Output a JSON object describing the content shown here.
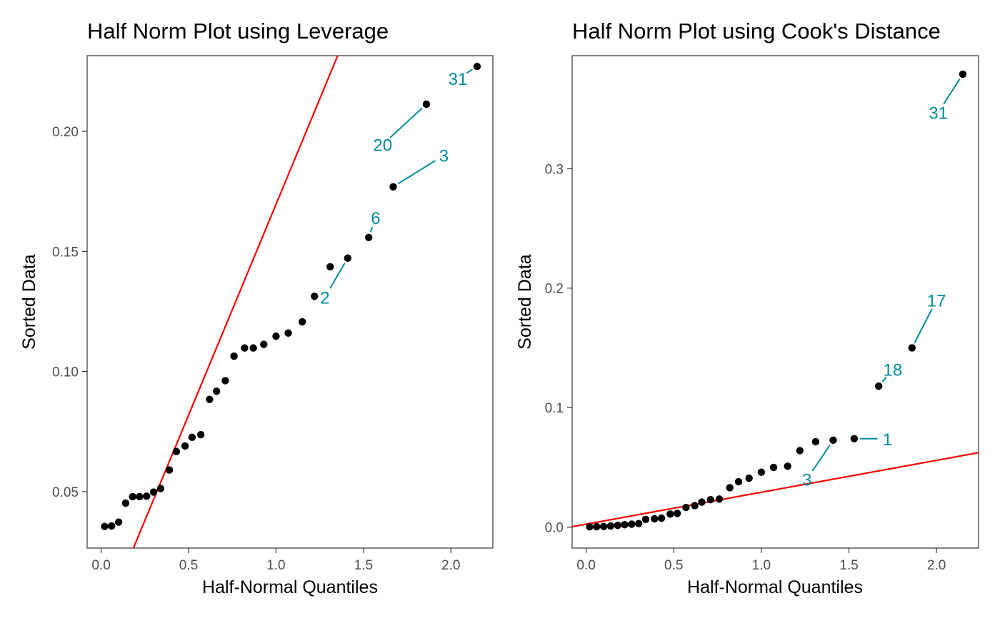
{
  "colors": {
    "point": "#000000",
    "line": "#ff0000",
    "label": "#008b9b",
    "frame": "#333333",
    "tick_text": "#4d4d4d"
  },
  "chart_data": [
    {
      "type": "scatter",
      "title": "Half Norm Plot using Leverage",
      "xlabel": "Half-Normal Quantiles",
      "ylabel": "Sorted Data",
      "xlim": [
        -0.08,
        2.24
      ],
      "ylim": [
        0.0265,
        0.2315
      ],
      "xticks": [
        0.0,
        0.5,
        1.0,
        1.5,
        2.0
      ],
      "xtick_labels": [
        "0.0",
        "0.5",
        "1.0",
        "1.5",
        "2.0"
      ],
      "yticks": [
        0.05,
        0.1,
        0.15,
        0.2
      ],
      "ytick_labels": [
        "0.05",
        "0.10",
        "0.15",
        "0.20"
      ],
      "reference_line": {
        "intercept": -0.0059,
        "slope": 0.1755
      },
      "points": [
        [
          0.02,
          0.0355
        ],
        [
          0.06,
          0.0357
        ],
        [
          0.1,
          0.0373
        ],
        [
          0.14,
          0.0452
        ],
        [
          0.18,
          0.0479
        ],
        [
          0.22,
          0.0479
        ],
        [
          0.26,
          0.0481
        ],
        [
          0.3,
          0.0498
        ],
        [
          0.34,
          0.0513
        ],
        [
          0.39,
          0.059
        ],
        [
          0.43,
          0.0667
        ],
        [
          0.48,
          0.069
        ],
        [
          0.52,
          0.0726
        ],
        [
          0.57,
          0.0737
        ],
        [
          0.62,
          0.0884
        ],
        [
          0.66,
          0.0918
        ],
        [
          0.71,
          0.0962
        ],
        [
          0.76,
          0.1064
        ],
        [
          0.82,
          0.1098
        ],
        [
          0.87,
          0.1098
        ],
        [
          0.93,
          0.1113
        ],
        [
          1.0,
          0.1147
        ],
        [
          1.07,
          0.116
        ],
        [
          1.15,
          0.1207
        ],
        [
          1.22,
          0.1313
        ],
        [
          1.31,
          0.1436
        ],
        [
          1.41,
          0.1472
        ],
        [
          1.53,
          0.1558
        ],
        [
          1.67,
          0.1769
        ],
        [
          1.86,
          0.2113
        ],
        [
          2.15,
          0.227
        ]
      ],
      "labels": [
        {
          "text": "31",
          "point": [
            2.15,
            0.227
          ],
          "at": [
            2.04,
            0.222
          ]
        },
        {
          "text": "20",
          "point": [
            1.86,
            0.2113
          ],
          "at": [
            1.61,
            0.1945
          ]
        },
        {
          "text": "3",
          "point": [
            1.67,
            0.1769
          ],
          "at": [
            1.96,
            0.19
          ]
        },
        {
          "text": "6",
          "point": [
            1.53,
            0.1558
          ],
          "at": [
            1.57,
            0.164
          ]
        },
        {
          "text": "2",
          "point": [
            1.41,
            0.1472
          ],
          "at": [
            1.28,
            0.131
          ]
        }
      ]
    },
    {
      "type": "scatter",
      "title": "Half Norm Plot using Cook's Distance",
      "xlabel": "Half-Normal Quantiles",
      "ylabel": "Sorted Data",
      "xlim": [
        -0.08,
        2.24
      ],
      "ylim": [
        -0.0175,
        0.3945
      ],
      "xticks": [
        0.0,
        0.5,
        1.0,
        1.5,
        2.0
      ],
      "xtick_labels": [
        "0.0",
        "0.5",
        "1.0",
        "1.5",
        "2.0"
      ],
      "yticks": [
        0.0,
        0.1,
        0.2,
        0.3
      ],
      "ytick_labels": [
        "0.0",
        "0.1",
        "0.2",
        "0.3"
      ],
      "reference_line": {
        "intercept": 0.0025,
        "slope": 0.0267
      },
      "points": [
        [
          0.02,
          0.0003
        ],
        [
          0.06,
          0.0004
        ],
        [
          0.1,
          0.0005
        ],
        [
          0.14,
          0.001
        ],
        [
          0.18,
          0.0015
        ],
        [
          0.22,
          0.002
        ],
        [
          0.26,
          0.0025
        ],
        [
          0.3,
          0.003
        ],
        [
          0.34,
          0.0065
        ],
        [
          0.39,
          0.007
        ],
        [
          0.43,
          0.0075
        ],
        [
          0.48,
          0.011
        ],
        [
          0.52,
          0.0115
        ],
        [
          0.57,
          0.0165
        ],
        [
          0.62,
          0.018
        ],
        [
          0.66,
          0.021
        ],
        [
          0.71,
          0.023
        ],
        [
          0.76,
          0.0235
        ],
        [
          0.82,
          0.033
        ],
        [
          0.87,
          0.038
        ],
        [
          0.93,
          0.041
        ],
        [
          1.0,
          0.046
        ],
        [
          1.07,
          0.05
        ],
        [
          1.15,
          0.051
        ],
        [
          1.22,
          0.064
        ],
        [
          1.31,
          0.0715
        ],
        [
          1.41,
          0.0728
        ],
        [
          1.53,
          0.074
        ],
        [
          1.67,
          0.118
        ],
        [
          1.86,
          0.15
        ],
        [
          2.15,
          0.379
        ]
      ],
      "labels": [
        {
          "text": "31",
          "point": [
            2.15,
            0.379
          ],
          "at": [
            2.01,
            0.347
          ]
        },
        {
          "text": "17",
          "point": [
            1.86,
            0.15
          ],
          "at": [
            2.0,
            0.19
          ]
        },
        {
          "text": "18",
          "point": [
            1.67,
            0.118
          ],
          "at": [
            1.75,
            0.132
          ]
        },
        {
          "text": "1",
          "point": [
            1.53,
            0.074
          ],
          "at": [
            1.72,
            0.074
          ]
        },
        {
          "text": "3",
          "point": [
            1.41,
            0.0728
          ],
          "at": [
            1.26,
            0.04
          ]
        }
      ]
    }
  ]
}
